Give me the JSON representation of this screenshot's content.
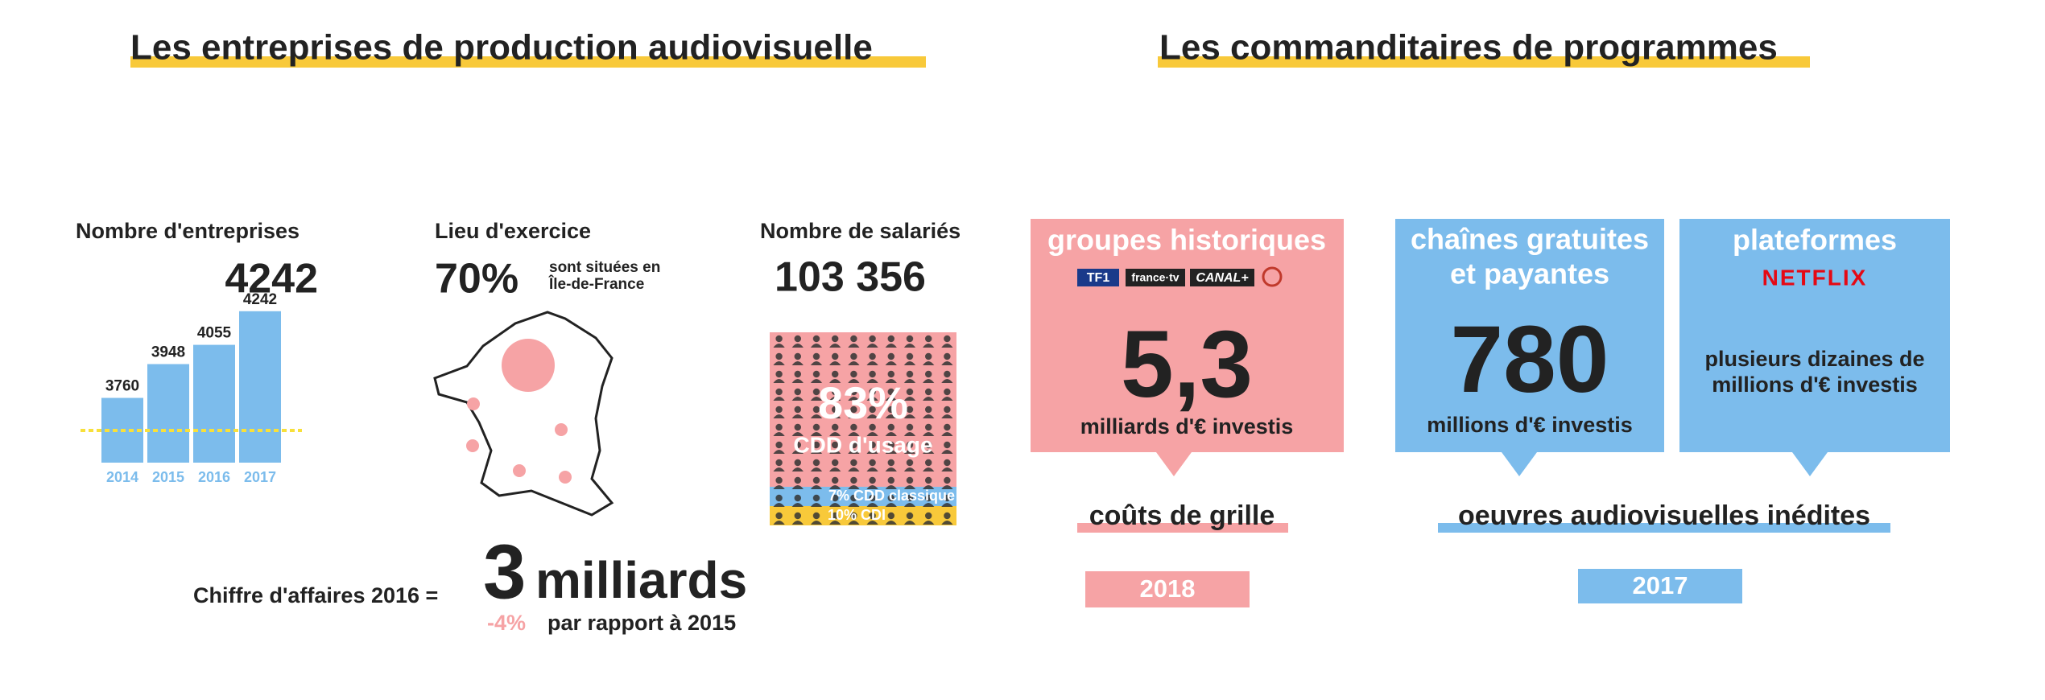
{
  "left_title": "Les entreprises de production audiovisuelle",
  "right_title": "Les commanditaires de programmes",
  "chart_data": {
    "type": "bar",
    "title": "Nombre d'entreprises",
    "categories": [
      "2014",
      "2015",
      "2016",
      "2017"
    ],
    "values": [
      3760,
      3948,
      4055,
      4242
    ],
    "color": "#7cbcec",
    "ylim": [
      3400,
      4250
    ]
  },
  "location": {
    "title": "Lieu d'exercice",
    "share": "70%",
    "note_line1": "sont situées en",
    "note_line2": "Île-de-France"
  },
  "employees": {
    "title": "Nombre de salariés",
    "total": "103 356",
    "main_share": "83%",
    "main_label": "CDD d'usage",
    "band1": "7% CDD classique",
    "band2": "10% CDI"
  },
  "revenue": {
    "label": "Chiffre d'affaires 2016 =",
    "amount_number": "3",
    "amount_unit": "milliards",
    "change": "-4%",
    "change_note": "par rapport à 2015"
  },
  "sponsors": [
    {
      "title_lines": [
        "groupes historiques"
      ],
      "logos": [
        "TF1",
        "france·tv",
        "CANAL+"
      ],
      "amount": "5,3",
      "amount_note": "milliards d'€ investis"
    },
    {
      "title_lines": [
        "chaînes gratuites",
        "et payantes"
      ],
      "amount": "780",
      "amount_note": "millions d'€ investis"
    },
    {
      "title_lines": [
        "plateformes"
      ],
      "logos": [
        "NETFLIX"
      ],
      "amount_note_lines": [
        "plusieurs dizaines de",
        "millions d'€ investis"
      ]
    }
  ],
  "cost_label": "coûts de grille",
  "works_label": "oeuvres audiovisuelles inédites",
  "cost_year": "2018",
  "works_year": "2017"
}
